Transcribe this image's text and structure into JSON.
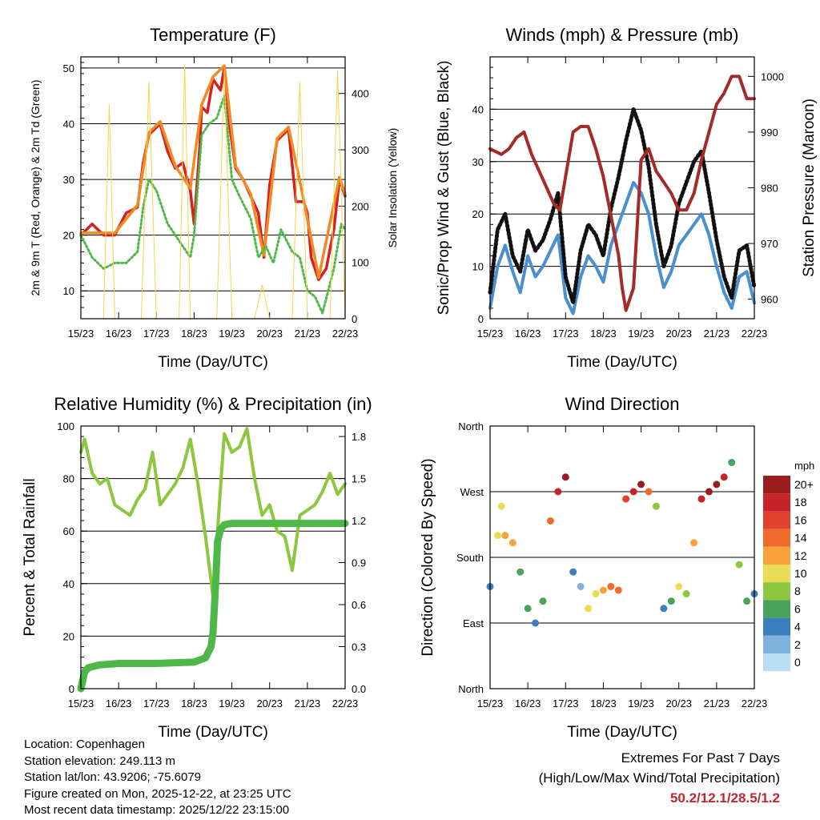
{
  "chart_data": [
    {
      "type": "line",
      "title": "Temperature (F)",
      "xlabel": "Time (Day/UTC)",
      "ylabel": "2m & 9m T (Red, Orange) & 2m Td (Green)",
      "ylabel_right": "Solar Insolation (Yellow)",
      "x_ticks": [
        "15/23",
        "16/23",
        "17/23",
        "18/23",
        "19/23",
        "20/23",
        "21/23",
        "22/23"
      ],
      "ylim": [
        5,
        52
      ],
      "y_ticks": [
        10,
        20,
        30,
        40,
        50
      ],
      "ylim_right": [
        0,
        465
      ],
      "y_ticks_right": [
        0,
        100,
        200,
        300,
        400
      ],
      "grid": true,
      "series": [
        {
          "name": "2m T",
          "color": "#d42020",
          "x": [
            0,
            0.3,
            0.6,
            0.9,
            1.2,
            1.5,
            1.65,
            1.8,
            2.1,
            2.3,
            2.5,
            2.7,
            2.9,
            3.0,
            3.15,
            3.2,
            3.35,
            3.5,
            3.7,
            3.8,
            3.95,
            4.1,
            4.3,
            4.5,
            4.7,
            4.85,
            5.0,
            5.2,
            5.5,
            5.7,
            5.9,
            6.0,
            6.1,
            6.3,
            6.5,
            6.7,
            6.85,
            7.0
          ],
          "values": [
            20,
            22,
            20,
            20,
            24,
            25,
            33,
            38,
            40,
            35,
            32,
            33,
            28,
            22,
            36,
            43,
            42,
            48,
            46,
            50,
            39,
            32,
            30,
            27,
            24,
            16,
            29,
            37,
            39,
            26,
            26,
            24,
            16,
            12,
            14,
            21,
            30,
            27
          ]
        },
        {
          "name": "9m T",
          "color": "#f08a24",
          "x": [
            0,
            0.9,
            1.5,
            1.8,
            2.1,
            2.5,
            2.9,
            3.2,
            3.5,
            3.8,
            4.1,
            4.5,
            4.85,
            5.2,
            5.5,
            5.9,
            6.3,
            6.85,
            7.0
          ],
          "values": [
            20.4,
            20.4,
            25.4,
            38.4,
            40.4,
            32.4,
            28.4,
            43.4,
            48.4,
            50.4,
            32.4,
            27.4,
            16.4,
            37.4,
            39.4,
            26.4,
            12.4,
            30.4,
            27.4
          ]
        },
        {
          "name": "2m Td",
          "color": "#4db848",
          "x": [
            0,
            0.3,
            0.6,
            0.9,
            1.2,
            1.5,
            1.65,
            1.8,
            2.0,
            2.3,
            2.5,
            2.7,
            2.9,
            3.0,
            3.2,
            3.4,
            3.6,
            3.8,
            4.0,
            4.2,
            4.5,
            4.7,
            4.9,
            5.1,
            5.3,
            5.6,
            5.8,
            6.0,
            6.2,
            6.4,
            6.7,
            6.9,
            7.0
          ],
          "values": [
            20,
            16,
            14,
            15,
            15,
            17,
            25,
            30,
            28,
            22,
            20,
            18,
            16,
            20,
            38,
            40,
            41,
            45,
            30,
            27,
            23,
            16,
            18,
            15,
            21,
            17,
            16,
            10,
            9,
            6,
            14,
            22,
            21
          ]
        },
        {
          "name": "Solar Insolation",
          "axis": "right",
          "color": "#f7d34a",
          "x": [
            0.6,
            0.75,
            0.9,
            1.6,
            1.8,
            2.0,
            2.6,
            2.75,
            2.9,
            3.6,
            3.8,
            4.0,
            4.6,
            4.8,
            5.0,
            5.6,
            5.8,
            6.0,
            6.6,
            6.8,
            7.0
          ],
          "values": [
            0,
            380,
            0,
            0,
            420,
            0,
            0,
            450,
            0,
            0,
            440,
            0,
            0,
            60,
            0,
            0,
            420,
            0,
            0,
            440,
            0
          ]
        }
      ]
    },
    {
      "type": "line",
      "title": "Winds (mph) & Pressure (mb)",
      "xlabel": "Time (Day/UTC)",
      "ylabel": "Sonic/Prop Wind & Gust (Blue, Black)",
      "ylabel_right": "Station Pressure (Maroon)",
      "x_ticks": [
        "15/23",
        "16/23",
        "17/23",
        "18/23",
        "19/23",
        "20/23",
        "21/23",
        "22/23"
      ],
      "ylim": [
        0,
        50
      ],
      "y_ticks": [
        0,
        10,
        20,
        30,
        40
      ],
      "ylim_right": [
        956.5,
        1003.5
      ],
      "y_ticks_right": [
        960,
        970,
        980,
        990,
        1000
      ],
      "grid": true,
      "series": [
        {
          "name": "Wind",
          "color": "#4a90d0",
          "x": [
            0,
            0.2,
            0.4,
            0.6,
            0.8,
            1.0,
            1.2,
            1.4,
            1.6,
            1.8,
            2.0,
            2.2,
            2.4,
            2.6,
            2.8,
            3.0,
            3.2,
            3.4,
            3.6,
            3.8,
            4.0,
            4.2,
            4.4,
            4.6,
            4.8,
            5.0,
            5.2,
            5.4,
            5.6,
            5.8,
            6.0,
            6.2,
            6.4,
            6.6,
            6.8,
            7.0
          ],
          "values": [
            2,
            10,
            14,
            9,
            5,
            12,
            8,
            10,
            13,
            16,
            4,
            1,
            8,
            12,
            10,
            7,
            14,
            18,
            22,
            26,
            24,
            20,
            12,
            6,
            9,
            14,
            16,
            18,
            20,
            16,
            10,
            5,
            2,
            8,
            9,
            3
          ]
        },
        {
          "name": "Gust",
          "color": "#111111",
          "x": [
            0,
            0.2,
            0.4,
            0.6,
            0.8,
            1.0,
            1.2,
            1.4,
            1.6,
            1.8,
            2.0,
            2.2,
            2.4,
            2.6,
            2.8,
            3.0,
            3.2,
            3.4,
            3.6,
            3.8,
            4.0,
            4.2,
            4.4,
            4.6,
            4.8,
            5.0,
            5.2,
            5.4,
            5.6,
            5.8,
            6.0,
            6.2,
            6.4,
            6.6,
            6.8,
            7.0
          ],
          "values": [
            5,
            17,
            20,
            12,
            9,
            17,
            13,
            15,
            19,
            24,
            8,
            3,
            13,
            18,
            16,
            12,
            21,
            27,
            34,
            40,
            36,
            29,
            18,
            10,
            14,
            22,
            26,
            30,
            32,
            24,
            15,
            8,
            4,
            13,
            14,
            6
          ]
        },
        {
          "name": "Station Pressure",
          "axis": "right",
          "color": "#a52a2a",
          "x": [
            0,
            0.3,
            0.5,
            0.7,
            0.9,
            1.1,
            1.3,
            1.5,
            1.7,
            1.85,
            2.0,
            2.2,
            2.4,
            2.6,
            2.8,
            3.0,
            3.2,
            3.4,
            3.5,
            3.6,
            3.8,
            4.0,
            4.2,
            4.4,
            4.6,
            4.8,
            5.0,
            5.2,
            5.4,
            5.6,
            5.8,
            6.0,
            6.2,
            6.4,
            6.6,
            6.8,
            7.0
          ],
          "values": [
            987,
            986,
            987,
            989,
            990,
            986,
            983,
            980,
            977,
            976,
            982,
            990,
            991,
            991,
            987,
            982,
            975,
            968,
            962,
            958,
            962,
            985,
            987,
            983,
            981,
            979,
            976,
            976,
            979,
            985,
            990,
            995,
            997,
            1000,
            1000,
            996,
            996
          ]
        }
      ]
    },
    {
      "type": "line",
      "title": "Relative Humidity (%) & Precipitation (in)",
      "xlabel": "Time (Day/UTC)",
      "ylabel": "Percent & Total Rainfall",
      "x_ticks": [
        "15/23",
        "16/23",
        "17/23",
        "18/23",
        "19/23",
        "20/23",
        "21/23",
        "22/23"
      ],
      "ylim": [
        0,
        100
      ],
      "y_ticks": [
        0,
        20,
        40,
        60,
        80,
        100
      ],
      "ylim_right": [
        0,
        1.875
      ],
      "y_ticks_right": [
        "0.0",
        "0.3",
        "0.6",
        "0.9",
        "1.2",
        "1.5",
        "1.8"
      ],
      "grid": true,
      "series": [
        {
          "name": "Relative Humidity",
          "color": "#8dc63f",
          "x": [
            0,
            0.1,
            0.3,
            0.5,
            0.7,
            0.9,
            1.1,
            1.3,
            1.5,
            1.7,
            1.9,
            2.1,
            2.3,
            2.5,
            2.7,
            2.9,
            3.1,
            3.3,
            3.5,
            3.6,
            3.8,
            4.0,
            4.2,
            4.4,
            4.6,
            4.8,
            5.0,
            5.2,
            5.4,
            5.6,
            5.8,
            6.0,
            6.2,
            6.4,
            6.6,
            6.8,
            7.0
          ],
          "values": [
            90,
            95,
            82,
            78,
            80,
            70,
            68,
            66,
            72,
            76,
            90,
            70,
            74,
            78,
            84,
            95,
            78,
            58,
            35,
            56,
            97,
            90,
            92,
            99,
            80,
            66,
            70,
            60,
            58,
            45,
            66,
            68,
            70,
            75,
            82,
            74,
            78
          ]
        },
        {
          "name": "Total Precipitation",
          "axis": "right",
          "color": "#4db848",
          "x": [
            0,
            0.1,
            0.2,
            0.5,
            1.0,
            2.0,
            3.0,
            3.3,
            3.45,
            3.5,
            3.55,
            3.62,
            3.7,
            3.8,
            4.0,
            5.0,
            6.0,
            7.0
          ],
          "values": [
            0.0,
            0.12,
            0.15,
            0.17,
            0.18,
            0.18,
            0.19,
            0.22,
            0.3,
            0.4,
            0.65,
            1.05,
            1.14,
            1.17,
            1.18,
            1.18,
            1.18,
            1.18
          ]
        }
      ]
    },
    {
      "type": "scatter",
      "title": "Wind Direction",
      "xlabel": "Time (Day/UTC)",
      "ylabel": "Direction (Colored By Speed)",
      "x_ticks": [
        "15/23",
        "16/23",
        "17/23",
        "18/23",
        "19/23",
        "20/23",
        "21/23",
        "22/23"
      ],
      "ylim": [
        0,
        360
      ],
      "y_ticks": [
        "North",
        "East",
        "South",
        "West",
        "North"
      ],
      "grid": true,
      "colorbar": {
        "title": "mph",
        "labels": [
          "20+",
          "18",
          "16",
          "14",
          "12",
          "10",
          "8",
          "6",
          "4",
          "2",
          "0"
        ],
        "colors": [
          "#9b1b1e",
          "#c6232a",
          "#e0402e",
          "#f06a2c",
          "#f9a23c",
          "#e8dd55",
          "#8dc63f",
          "#4aa35c",
          "#3b7fbf",
          "#7fb3de",
          "#b9ddf2"
        ]
      },
      "series": [
        {
          "name": "direction",
          "x": [
            0,
            0.2,
            0.3,
            0.4,
            0.6,
            0.8,
            1.0,
            1.2,
            1.4,
            1.6,
            1.8,
            2.0,
            2.2,
            2.4,
            2.6,
            2.8,
            3.0,
            3.2,
            3.4,
            3.6,
            3.8,
            4.0,
            4.2,
            4.4,
            4.6,
            4.8,
            5.0,
            5.2,
            5.4,
            5.6,
            5.8,
            6.0,
            6.2,
            6.4,
            6.6,
            6.8,
            7.0
          ],
          "values": [
            140,
            210,
            250,
            210,
            200,
            160,
            110,
            90,
            120,
            230,
            270,
            290,
            160,
            140,
            110,
            130,
            135,
            140,
            135,
            260,
            270,
            280,
            270,
            250,
            110,
            120,
            140,
            130,
            200,
            260,
            270,
            280,
            290,
            310,
            170,
            120,
            130
          ],
          "speeds": [
            4,
            9,
            10,
            12,
            11,
            6,
            5,
            4,
            6,
            14,
            18,
            20,
            3,
            2,
            9,
            10,
            12,
            13,
            14,
            16,
            18,
            20,
            14,
            8,
            4,
            6,
            10,
            7,
            12,
            18,
            20,
            20,
            18,
            6,
            7,
            6,
            3
          ]
        }
      ]
    }
  ],
  "info": {
    "location": "Location: Copenhagen",
    "elevation": "Station elevation: 249.113 m",
    "latlon": "Station lat/lon: 43.9206; -75.6079",
    "created": "Figure created on Mon, 2025-12-22, at 23:25 UTC",
    "recent": "Most recent data timestamp: 2025/12/22 23:15:00"
  },
  "extremes": {
    "title": "Extremes For Past 7 Days",
    "subtitle": "(High/Low/Max Wind/Total Precipitation)",
    "values": "50.2/12.1/28.5/1.2"
  }
}
